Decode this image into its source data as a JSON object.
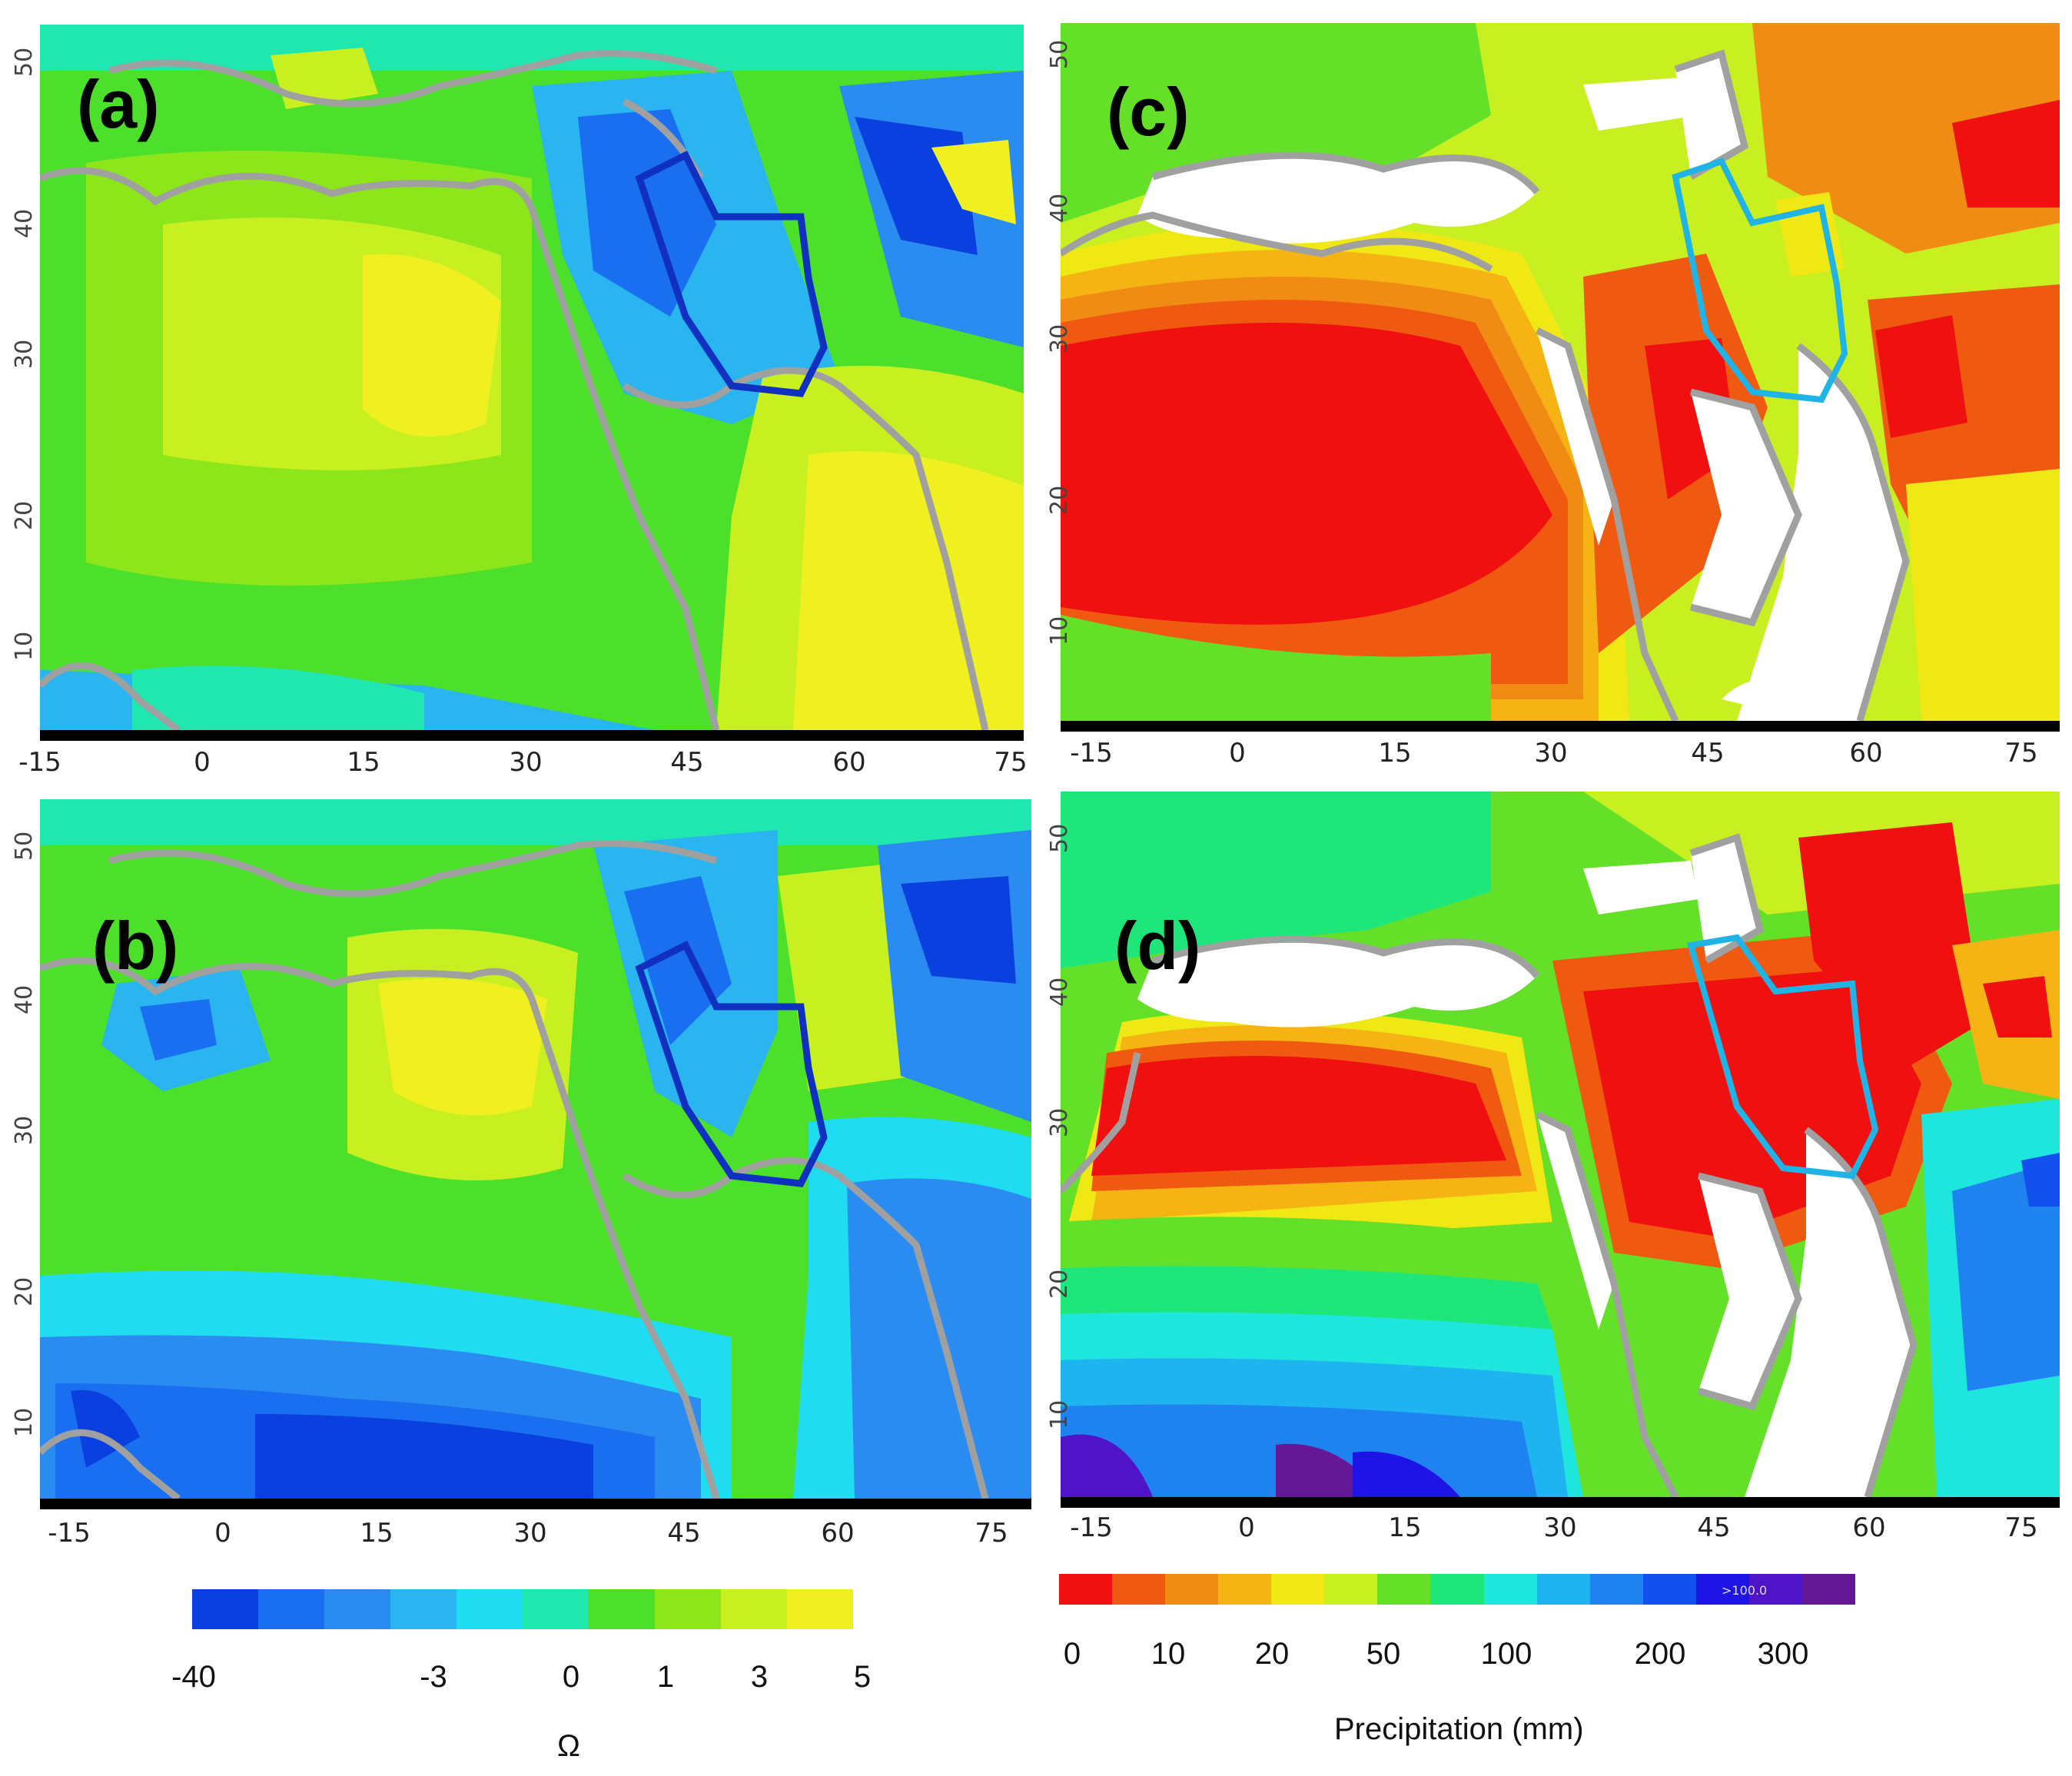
{
  "panels": [
    {
      "id": "a",
      "label": "(a)",
      "x_ticks": [
        "-15",
        "0",
        "15",
        "30",
        "45",
        "60",
        "75"
      ],
      "y_ticks": [
        "10",
        "20",
        "30",
        "40",
        "50"
      ]
    },
    {
      "id": "b",
      "label": "(b)",
      "x_ticks": [
        "-15",
        "0",
        "15",
        "30",
        "45",
        "60",
        "75"
      ],
      "y_ticks": [
        "10",
        "20",
        "30",
        "40",
        "50"
      ]
    },
    {
      "id": "c",
      "label": "(c)",
      "x_ticks": [
        "-15",
        "0",
        "15",
        "30",
        "45",
        "60",
        "75"
      ],
      "y_ticks": [
        "10",
        "20",
        "30",
        "40",
        "50"
      ]
    },
    {
      "id": "d",
      "label": "(d)",
      "x_ticks": [
        "-15",
        "0",
        "15",
        "30",
        "45",
        "60",
        "75"
      ],
      "y_ticks": [
        "10",
        "20",
        "30",
        "40",
        "50"
      ]
    }
  ],
  "omega_colorbar": {
    "colors": [
      "#0a3fe0",
      "#1a6ef0",
      "#2a8cf0",
      "#2ab4f0",
      "#20dcf0",
      "#20e6b0",
      "#4ce02a",
      "#8ce61a",
      "#c8f020",
      "#f0f020"
    ],
    "labels": [
      "-40",
      "-3",
      "0",
      "1",
      "3",
      "5"
    ],
    "title": "Ω"
  },
  "precip_colorbar": {
    "colors": [
      "#f01010",
      "#f05a10",
      "#f08c14",
      "#f5b414",
      "#f0e814",
      "#c8f01e",
      "#64e028",
      "#1ee67a",
      "#1ee6dc",
      "#1eb4f0",
      "#1e82f0",
      "#1450f0",
      "#1e14e6",
      "#5014c8",
      "#641896"
    ],
    "labels": [
      "0",
      "10",
      "20",
      "50",
      "100",
      "200",
      "300"
    ],
    "inner_label": ">100.0",
    "title": "Precipitation (mm)"
  },
  "colors": {
    "coast": "#a0a0a0",
    "iran_border_ab": "#1030c0",
    "iran_border_cd": "#20b4e6"
  }
}
